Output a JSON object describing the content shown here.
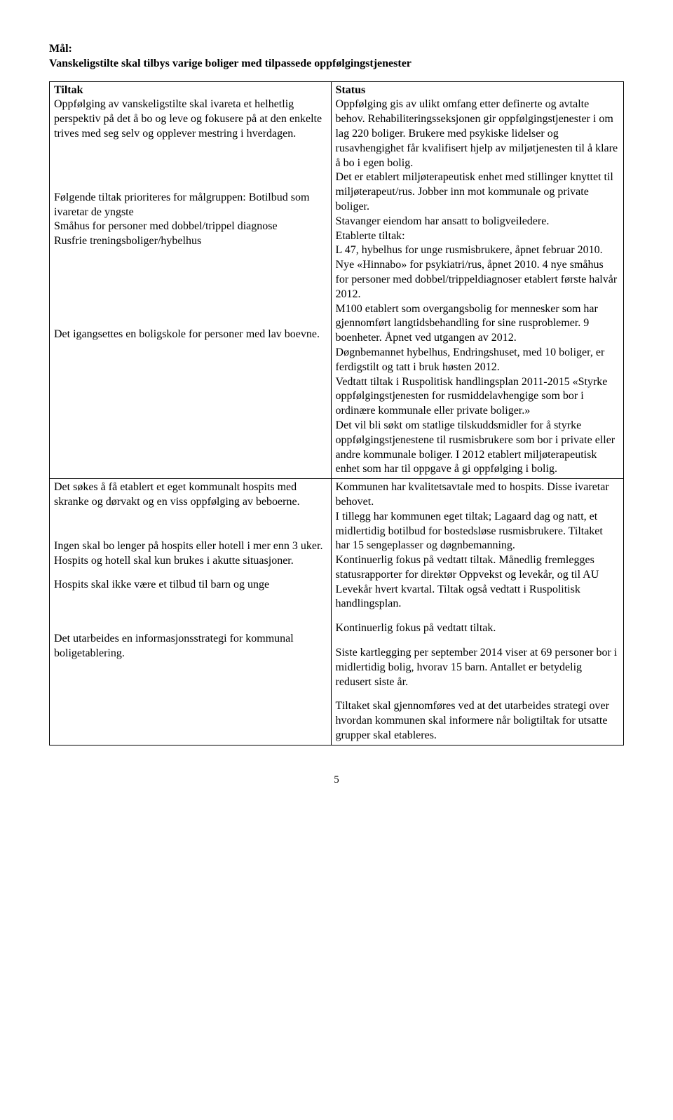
{
  "goal": {
    "label": "Mål:",
    "text": "Vanskeligstilte skal tilbys varige boliger med tilpassede oppfølgingstjenester"
  },
  "headers": {
    "tiltak": "Tiltak",
    "status": "Status"
  },
  "rows": [
    {
      "left": [
        "Oppfølging av vanskeligstilte skal ivareta et helhetlig perspektiv på det å bo og leve og fokusere på at den enkelte trives med seg selv og opplever mestring i hverdagen.",
        "",
        "",
        "Følgende tiltak prioriteres for målgruppen: Botilbud som ivaretar de yngste",
        "Småhus for personer med dobbel/trippel diagnose",
        "Rusfrie treningsboliger/hybelhus",
        "",
        "",
        "",
        "Det igangsettes en boligskole for personer med lav boevne."
      ],
      "right": [
        "Oppfølging gis av ulikt omfang etter definerte og avtalte behov. Rehabiliteringsseksjonen gir oppfølgingstjenester i om lag 220 boliger. Brukere med psykiske lidelser og rusavhengighet får kvalifisert hjelp av miljøtjenesten til å klare å bo i egen bolig.",
        "Det er etablert miljøterapeutisk enhet med stillinger knyttet til miljøterapeut/rus. Jobber inn mot kommunale og private boliger.",
        "Stavanger eiendom har ansatt to boligveiledere.",
        "Etablerte tiltak:",
        "L 47, hybelhus for unge rusmisbrukere, åpnet februar 2010. Nye «Hinnabo» for psykiatri/rus, åpnet 2010. 4 nye småhus for personer med dobbel/trippeldiagnoser etablert første halvår 2012.",
        "M100 etablert som overgangsbolig for mennesker som har gjennomført langtidsbehandling for sine rusproblemer. 9 boenheter. Åpnet ved utgangen av 2012.",
        "Døgnbemannet hybelhus, Endringshuset, med 10 boliger, er ferdigstilt og tatt i bruk høsten 2012.",
        "Vedtatt tiltak i Ruspolitisk handlingsplan 2011-2015 «Styrke oppfølgingstjenesten for rusmiddelavhengige som bor i ordinære kommunale eller private boliger.»",
        "Det vil bli søkt om statlige tilskuddsmidler for å styrke oppfølgingstjenestene til rusmisbrukere som bor i private eller andre kommunale boliger. I 2012 etablert miljøterapeutisk enhet som har til oppgave å gi oppfølging i bolig."
      ]
    },
    {
      "left": [
        "Det søkes å få etablert et eget kommunalt hospits med skranke og dørvakt og en viss oppfølging av beboerne.",
        "",
        "Ingen skal bo lenger på hospits eller hotell i mer enn 3 uker. Hospits og hotell skal kun brukes i akutte situasjoner.",
        "",
        "Hospits skal ikke være et tilbud til barn og unge",
        "",
        "",
        "",
        "Det utarbeides en informasjonsstrategi for kommunal boligetablering."
      ],
      "right": [
        "Kommunen har kvalitetsavtale med to hospits. Disse ivaretar behovet.",
        "I tillegg har kommunen eget tiltak; Lagaard dag og natt, et midlertidig botilbud for bostedsløse rusmisbrukere. Tiltaket har 15 sengeplasser og døgnbemanning.",
        "Kontinuerlig fokus på vedtatt tiltak. Månedlig fremlegges statusrapporter for direktør Oppvekst og levekår, og til AU Levekår hvert kvartal. Tiltak også vedtatt i Ruspolitisk handlingsplan.",
        "",
        "Kontinuerlig fokus på vedtatt tiltak.",
        "",
        "Siste kartlegging per september 2014 viser at 69 personer bor i midlertidig bolig, hvorav 15 barn. Antallet er betydelig redusert siste år.",
        "",
        "Tiltaket skal gjennomføres ved at det utarbeides strategi over hvordan kommunen skal informere når boligtiltak for utsatte grupper skal etableres."
      ]
    }
  ],
  "pageNumber": "5"
}
